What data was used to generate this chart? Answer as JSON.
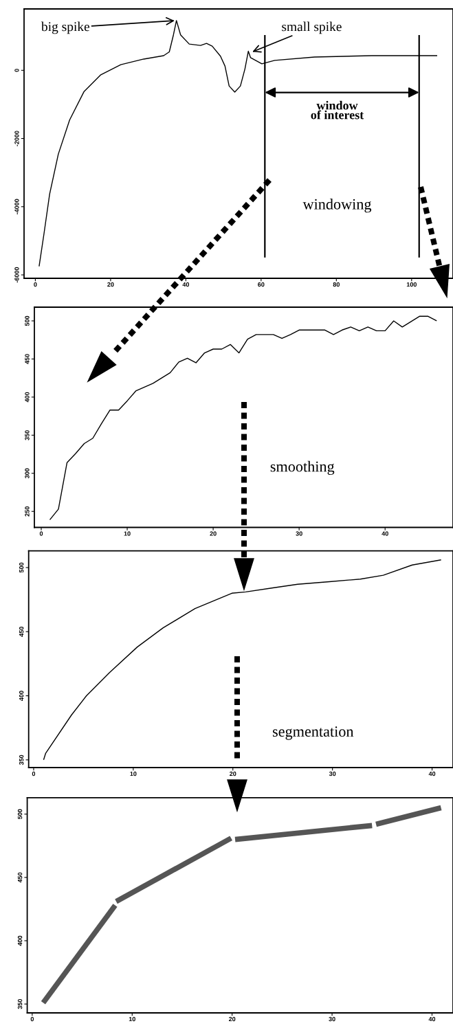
{
  "chart_data": [
    {
      "type": "line",
      "xlim": [
        -3,
        111
      ],
      "ylim": [
        -6100,
        1800
      ],
      "xticks": [
        0,
        20,
        40,
        60,
        80,
        100
      ],
      "yticks": [
        -6000,
        -4000,
        -2000,
        0
      ],
      "grid": false,
      "marker": "none",
      "line_style": "solid",
      "series": [
        {
          "color": "#000000",
          "x": [
            1.0,
            2.3,
            3.8,
            6.1,
            9.1,
            12.9,
            17.4,
            22.7,
            28.8,
            34.1,
            35.6,
            36.7,
            37.5,
            38.6,
            40.9,
            43.9,
            45.5,
            47.0,
            49.2,
            50.4,
            51.5,
            53.0,
            54.5,
            55.7,
            56.6,
            57.2,
            60.2,
            63.6,
            74.2,
            89.4,
            106.8
          ],
          "values": [
            -5750,
            -4790,
            -3630,
            -2460,
            -1460,
            -630,
            -130,
            165,
            330,
            430,
            540,
            1040,
            1460,
            1040,
            770,
            730,
            790,
            710,
            415,
            125,
            -460,
            -640,
            -460,
            40,
            560,
            370,
            190,
            290,
            390,
            430,
            430
          ]
        }
      ],
      "ref_lines": [
        {
          "axis": "x",
          "value": 61,
          "color": "#000000"
        },
        {
          "axis": "x",
          "value": 102,
          "color": "#000000"
        }
      ],
      "annotations": [
        {
          "text": "big spike",
          "x": 37.5,
          "y": 1460
        },
        {
          "text": "small spike",
          "x": 57.2,
          "y": 520
        },
        "window\nof interest",
        "windowing"
      ]
    },
    {
      "type": "line",
      "xlim": [
        -0.8,
        47.9
      ],
      "ylim": [
        229,
        518
      ],
      "xticks": [
        0,
        10,
        20,
        30,
        40
      ],
      "yticks": [
        250,
        300,
        350,
        400,
        450,
        500
      ],
      "grid": false,
      "marker": "none",
      "line_style": "solid",
      "series": [
        {
          "color": "#000000",
          "x": [
            1,
            2,
            3,
            4,
            5,
            6,
            7,
            8,
            9,
            10,
            11,
            12,
            13,
            14,
            15,
            16,
            17,
            18,
            19,
            20,
            21,
            22,
            23,
            24,
            25,
            26,
            27,
            28,
            29,
            30,
            31,
            32,
            33,
            34,
            35,
            36,
            37,
            38,
            39,
            40,
            41,
            42,
            43,
            44,
            45,
            46
          ],
          "values": [
            239,
            253,
            314,
            326,
            339,
            346,
            365,
            383,
            383,
            395,
            408,
            413,
            418,
            425,
            432,
            446,
            451,
            445,
            458,
            463,
            463,
            469,
            458,
            476,
            482,
            482,
            482,
            477,
            482,
            488,
            488,
            488,
            488,
            482,
            488,
            492,
            487,
            492,
            487,
            487,
            500,
            492,
            499,
            506,
            506,
            500
          ]
        }
      ],
      "annotations": [
        "smoothing"
      ]
    },
    {
      "type": "line",
      "xlim": [
        -0.5,
        42.1
      ],
      "ylim": [
        344,
        513
      ],
      "xticks": [
        0,
        10,
        20,
        30,
        40
      ],
      "yticks": [
        350,
        400,
        450,
        500
      ],
      "grid": false,
      "marker": "none",
      "line_style": "solid",
      "series": [
        {
          "color": "#000000",
          "x": [
            1.0,
            1.2,
            3.8,
            5.3,
            7.6,
            10.4,
            13.0,
            16.2,
            19.9,
            21.3,
            23.9,
            26.5,
            29.7,
            32.8,
            35.1,
            38.0,
            40.9
          ],
          "values": [
            350,
            355,
            385,
            400,
            418,
            438,
            453,
            468,
            480,
            481,
            484,
            487,
            489,
            491,
            494,
            502,
            506
          ]
        }
      ],
      "annotations": [
        "segmentation"
      ]
    },
    {
      "type": "line",
      "xlim": [
        -0.5,
        42.1
      ],
      "ylim": [
        343,
        513
      ],
      "xticks": [
        0,
        10,
        20,
        30,
        40
      ],
      "yticks": [
        350,
        400,
        450,
        500
      ],
      "grid": false,
      "marker": "none",
      "line_style": "solid",
      "series": [
        {
          "color": "#555555",
          "x": [
            1.1,
            8.3
          ],
          "values": [
            351,
            428
          ]
        },
        {
          "color": "#555555",
          "x": [
            8.4,
            19.9
          ],
          "values": [
            431,
            481
          ]
        },
        {
          "color": "#555555",
          "x": [
            20.3,
            34.0
          ],
          "values": [
            480,
            491
          ]
        },
        {
          "color": "#555555",
          "x": [
            34.4,
            40.9
          ],
          "values": [
            492,
            505
          ]
        }
      ]
    }
  ]
}
